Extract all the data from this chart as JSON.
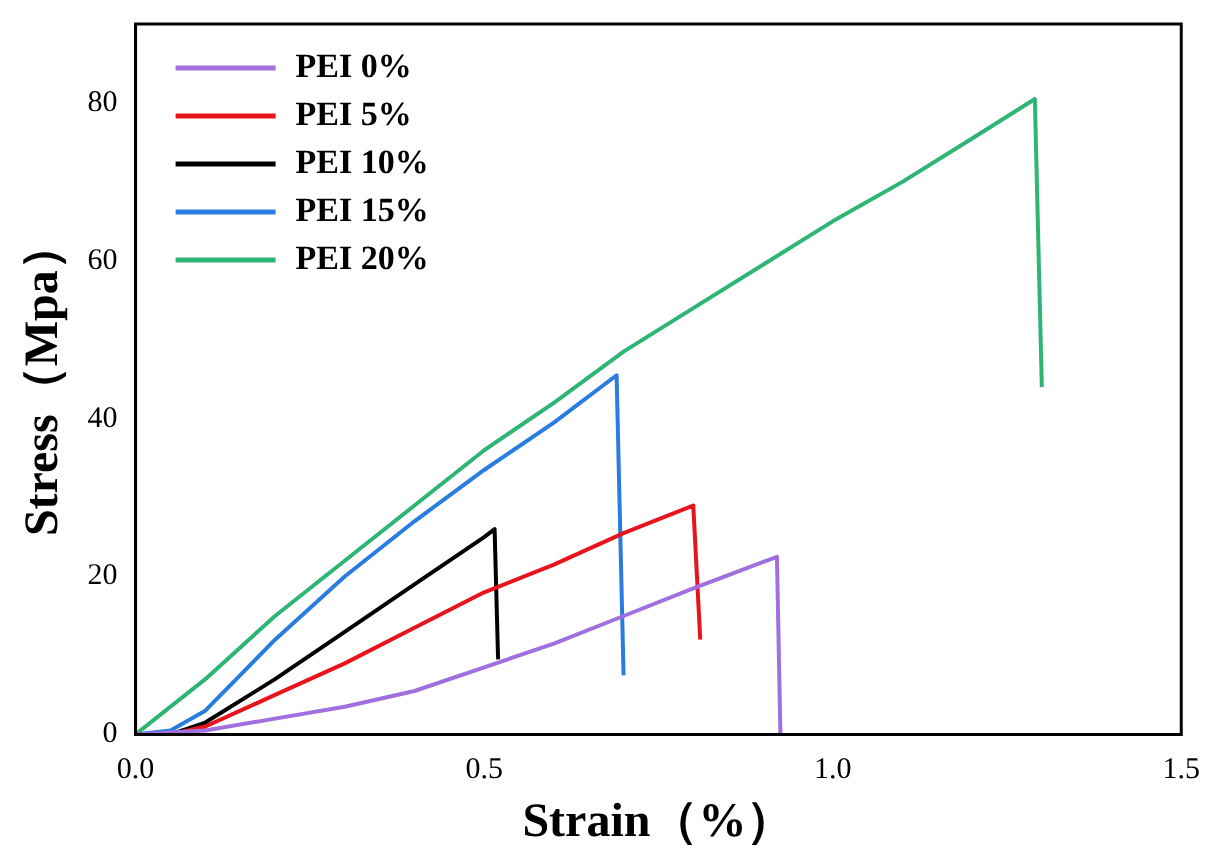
{
  "chart_data": {
    "type": "line",
    "xlabel": "Strain（%）",
    "ylabel": "Stress（Mpa）",
    "xlim": [
      0,
      1.5
    ],
    "ylim": [
      0,
      90
    ],
    "xticks": [
      {
        "value": 0,
        "label": "0.0"
      },
      0.5,
      {
        "value": 1,
        "label": "1.0"
      },
      1.5
    ],
    "yticks": [
      0,
      20,
      40,
      60,
      80
    ],
    "grid": false,
    "legend": "top left",
    "marker": "none",
    "line_style": "solid",
    "series": [
      {
        "name": "PEI 0%",
        "color": "#a070e0",
        "x": [
          0,
          0.1,
          0.2,
          0.3,
          0.4,
          0.5,
          0.6,
          0.7,
          0.8,
          0.92,
          0.925
        ],
        "values": [
          0,
          0.5,
          2,
          3.5,
          5.5,
          8.5,
          11.5,
          15,
          18.5,
          22.5,
          0
        ]
      },
      {
        "name": "PEI 5%",
        "color": "#e8141c",
        "x": [
          0,
          0.05,
          0.1,
          0.2,
          0.3,
          0.4,
          0.5,
          0.6,
          0.7,
          0.8,
          0.81
        ],
        "values": [
          0,
          0,
          1,
          5,
          9,
          13.5,
          18,
          21.5,
          25.5,
          29,
          12
        ]
      },
      {
        "name": "PEI 10%",
        "color": "#000000",
        "x": [
          0,
          0.05,
          0.1,
          0.2,
          0.3,
          0.4,
          0.5,
          0.515,
          0.52
        ],
        "values": [
          0,
          0,
          1.5,
          7,
          13,
          19,
          25,
          26,
          9.5
        ]
      },
      {
        "name": "PEI 15%",
        "color": "#2a7de0",
        "x": [
          0,
          0.05,
          0.1,
          0.2,
          0.3,
          0.4,
          0.5,
          0.6,
          0.69,
          0.7
        ],
        "values": [
          0,
          0.5,
          3,
          12,
          20,
          27,
          33.5,
          39.5,
          45.5,
          7.5
        ]
      },
      {
        "name": "PEI 20%",
        "color": "#2fb573",
        "x": [
          0,
          0.1,
          0.2,
          0.3,
          0.4,
          0.5,
          0.6,
          0.7,
          0.8,
          0.9,
          1.0,
          1.1,
          1.2,
          1.29,
          1.3
        ],
        "values": [
          0,
          7,
          15,
          22,
          29,
          36,
          42,
          48.5,
          54,
          59.5,
          65,
          70,
          75.5,
          80.5,
          44
        ]
      }
    ]
  }
}
